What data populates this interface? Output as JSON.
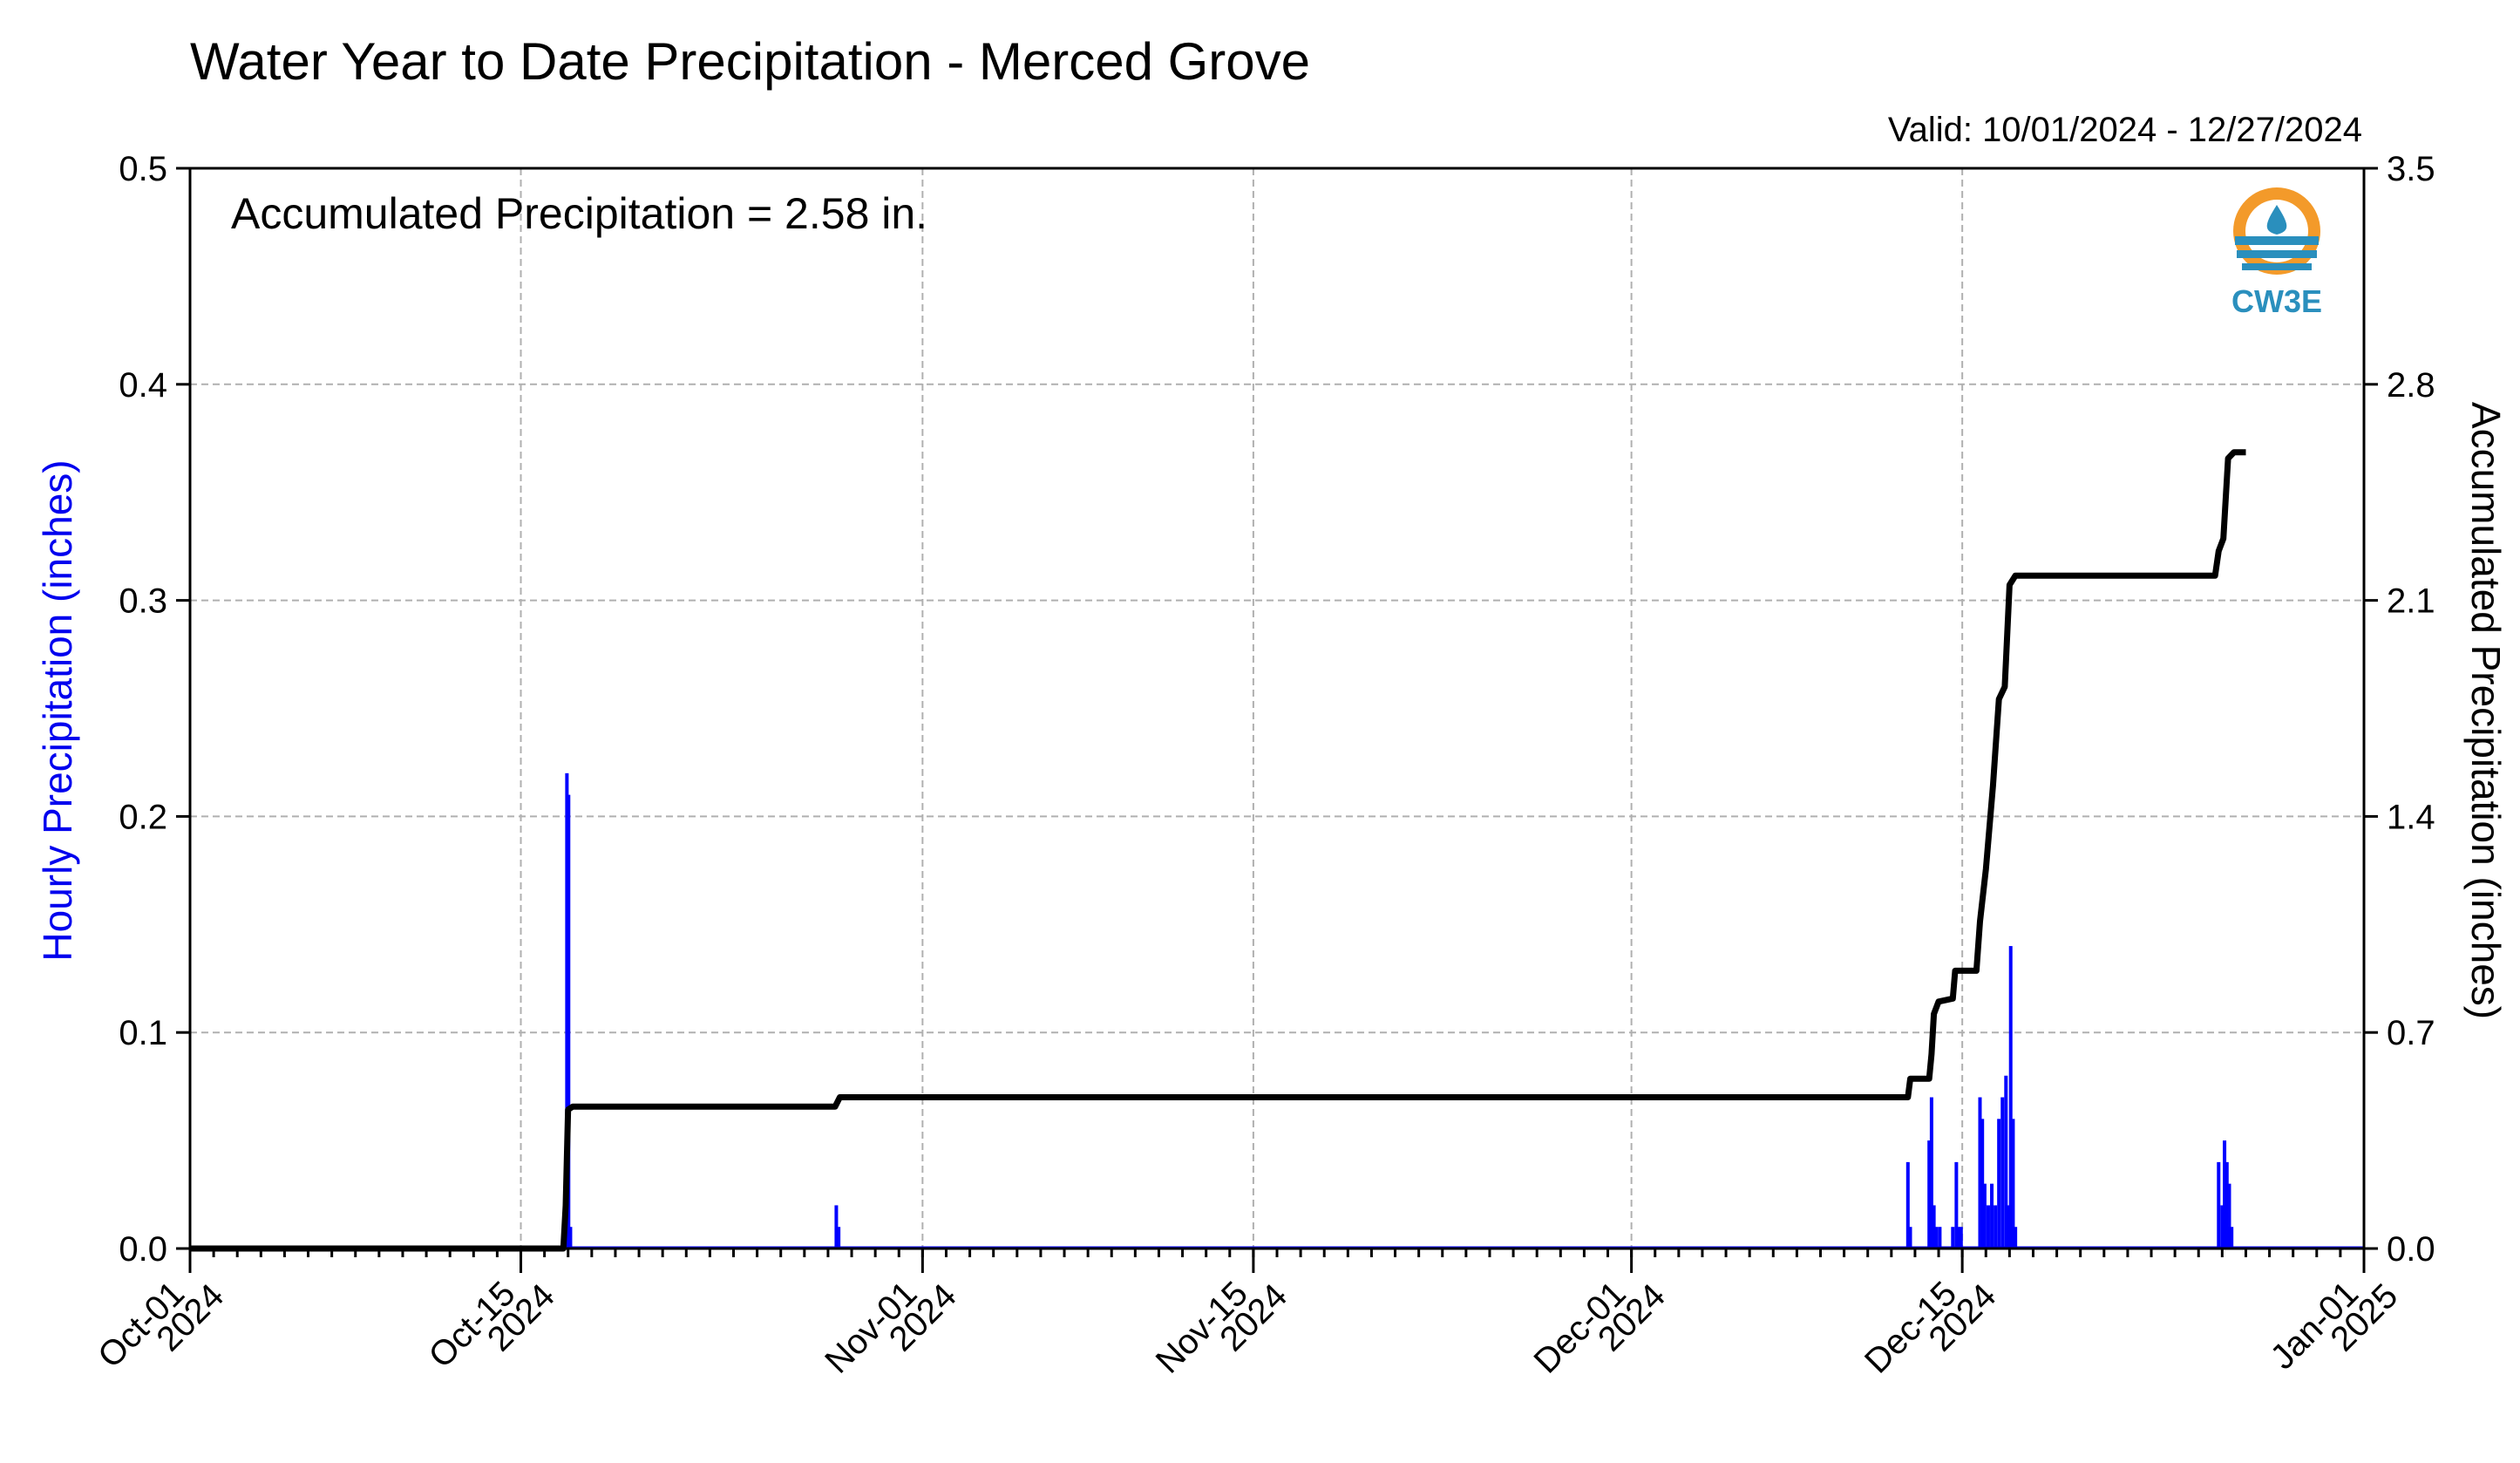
{
  "chart_data": {
    "type": "bar+line",
    "title": "Water Year to Date Precipitation - Merced Grove",
    "valid_label": "Valid: 10/01/2024 - 12/27/2024",
    "annotation": "Accumulated Precipitation = 2.58 in.",
    "ylabel_left": "Hourly Precipitation (inches)",
    "ylabel_right": "Accumulated Precipitation (inches)",
    "ylim_left": [
      0,
      0.5
    ],
    "ylim_right": [
      0,
      3.5
    ],
    "yticks_left": [
      "0.0",
      "0.1",
      "0.2",
      "0.3",
      "0.4",
      "0.5"
    ],
    "yticks_right": [
      "0.0",
      "0.7",
      "1.4",
      "2.1",
      "2.8",
      "3.5"
    ],
    "x_range_days": [
      0,
      92
    ],
    "xticks": [
      {
        "day": 0,
        "label1": "Oct-01",
        "label2": "2024"
      },
      {
        "day": 14,
        "label1": "Oct-15",
        "label2": "2024"
      },
      {
        "day": 31,
        "label1": "Nov-01",
        "label2": "2024"
      },
      {
        "day": 45,
        "label1": "Nov-15",
        "label2": "2024"
      },
      {
        "day": 61,
        "label1": "Dec-01",
        "label2": "2024"
      },
      {
        "day": 75,
        "label1": "Dec-15",
        "label2": "2024"
      },
      {
        "day": 92,
        "label1": "Jan-01",
        "label2": "2025"
      }
    ],
    "grid": true,
    "colors": {
      "hourly": "#0000ff",
      "accumulated": "#000000",
      "left_label": "#0000ee"
    },
    "hourly_series": {
      "name": "Hourly Precipitation",
      "points": [
        [
          15.85,
          0.02
        ],
        [
          15.95,
          0.22
        ],
        [
          16.02,
          0.21
        ],
        [
          16.1,
          0.01
        ],
        [
          27.35,
          0.02
        ],
        [
          27.45,
          0.01
        ],
        [
          72.7,
          0.04
        ],
        [
          72.8,
          0.01
        ],
        [
          73.6,
          0.05
        ],
        [
          73.7,
          0.07
        ],
        [
          73.8,
          0.02
        ],
        [
          73.9,
          0.01
        ],
        [
          74.05,
          0.01
        ],
        [
          74.6,
          0.01
        ],
        [
          74.75,
          0.04
        ],
        [
          74.85,
          0.01
        ],
        [
          74.95,
          0.01
        ],
        [
          75.75,
          0.07
        ],
        [
          75.85,
          0.06
        ],
        [
          75.95,
          0.03
        ],
        [
          76.1,
          0.02
        ],
        [
          76.25,
          0.03
        ],
        [
          76.4,
          0.02
        ],
        [
          76.55,
          0.06
        ],
        [
          76.7,
          0.07
        ],
        [
          76.85,
          0.08
        ],
        [
          76.95,
          0.02
        ],
        [
          77.05,
          0.14
        ],
        [
          77.15,
          0.06
        ],
        [
          77.25,
          0.01
        ],
        [
          85.85,
          0.04
        ],
        [
          86.0,
          0.02
        ],
        [
          86.1,
          0.05
        ],
        [
          86.2,
          0.04
        ],
        [
          86.3,
          0.03
        ],
        [
          86.4,
          0.01
        ]
      ]
    },
    "accumulated_series": {
      "name": "Accumulated Precipitation",
      "points": [
        [
          0,
          0
        ],
        [
          15.8,
          0
        ],
        [
          15.9,
          0.14
        ],
        [
          16.0,
          0.45
        ],
        [
          16.2,
          0.46
        ],
        [
          27.3,
          0.46
        ],
        [
          27.5,
          0.49
        ],
        [
          72.7,
          0.49
        ],
        [
          72.8,
          0.55
        ],
        [
          73.6,
          0.55
        ],
        [
          73.7,
          0.63
        ],
        [
          73.8,
          0.76
        ],
        [
          74.0,
          0.8
        ],
        [
          74.6,
          0.81
        ],
        [
          74.7,
          0.9
        ],
        [
          75.6,
          0.9
        ],
        [
          75.75,
          1.06
        ],
        [
          76.0,
          1.23
        ],
        [
          76.3,
          1.5
        ],
        [
          76.55,
          1.78
        ],
        [
          76.8,
          1.82
        ],
        [
          77.0,
          2.15
        ],
        [
          77.25,
          2.18
        ],
        [
          85.7,
          2.18
        ],
        [
          85.85,
          2.26
        ],
        [
          86.05,
          2.3
        ],
        [
          86.25,
          2.56
        ],
        [
          86.5,
          2.58
        ],
        [
          87.0,
          2.58
        ]
      ]
    }
  }
}
